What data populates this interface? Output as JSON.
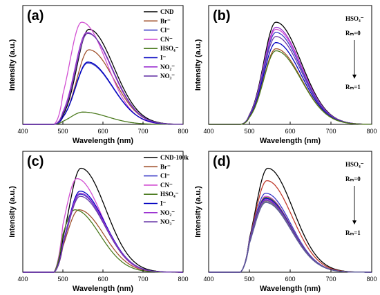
{
  "chart_data": [
    {
      "panel": "(a)",
      "type": "line",
      "xlabel": "Wavelength (nm)",
      "ylabel": "Intensity (a.u.)",
      "xlim": [
        400,
        800
      ],
      "xticks": [
        400,
        500,
        600,
        700,
        800
      ],
      "grid": false,
      "legend": "top-right",
      "series": [
        {
          "name": "CND",
          "color": "#000000",
          "peak": 565,
          "amp": 0.93
        },
        {
          "name": "Br⁻",
          "color": "#a0522d",
          "peak": 565,
          "amp": 0.73
        },
        {
          "name": "Cl⁻",
          "color": "#3c3cc8",
          "peak": 562,
          "amp": 0.6
        },
        {
          "name": "CN⁻",
          "color": "#d24fd2",
          "peak": 547,
          "amp": 1.0
        },
        {
          "name": "HSO₄⁻",
          "color": "#4b7a1e",
          "peak": 550,
          "amp": 0.12
        },
        {
          "name": "I⁻",
          "color": "#0000c0",
          "peak": 562,
          "amp": 0.61
        },
        {
          "name": "NO₂⁻",
          "color": "#9a2fd0",
          "peak": 560,
          "amp": 0.9
        },
        {
          "name": "NO₃⁻",
          "color": "#6a3aa8",
          "peak": 562,
          "amp": 0.89
        }
      ]
    },
    {
      "panel": "(b)",
      "type": "line",
      "xlabel": "Wavelength (nm)",
      "ylabel": "Intensity (a.u.)",
      "xlim": [
        400,
        800
      ],
      "xticks": [
        400,
        500,
        600,
        700,
        800
      ],
      "grid": false,
      "annotation": {
        "anion": "HSO₄⁻",
        "start": "Rₘ=0",
        "end": "Rₘ=1"
      },
      "series": [
        {
          "color": "#000000",
          "peak": 565,
          "amp": 1.0
        },
        {
          "color": "#9a2fd0",
          "peak": 565,
          "amp": 0.95
        },
        {
          "color": "#d24fd2",
          "peak": 565,
          "amp": 0.93
        },
        {
          "color": "#3c3cc8",
          "peak": 565,
          "amp": 0.9
        },
        {
          "color": "#6a3aa8",
          "peak": 565,
          "amp": 0.86
        },
        {
          "color": "#0000c0",
          "peak": 565,
          "amp": 0.8
        },
        {
          "color": "#a0522d",
          "peak": 565,
          "amp": 0.74
        },
        {
          "color": "#4b7a1e",
          "peak": 565,
          "amp": 0.72
        }
      ]
    },
    {
      "panel": "(c)",
      "type": "line",
      "xlabel": "Wavelength (nm)",
      "ylabel": "Intensity (a.u.)",
      "xlim": [
        400,
        800
      ],
      "xticks": [
        400,
        500,
        600,
        700,
        800
      ],
      "grid": false,
      "legend": "top-right",
      "series": [
        {
          "name": "CND-100k",
          "color": "#000000",
          "peak": 545,
          "amp": 1.0
        },
        {
          "name": "Br⁻",
          "color": "#a0522d",
          "peak": 540,
          "amp": 0.6
        },
        {
          "name": "Cl⁻",
          "color": "#3c3cc8",
          "peak": 543,
          "amp": 0.75
        },
        {
          "name": "CN⁻",
          "color": "#d24fd2",
          "peak": 535,
          "amp": 0.9
        },
        {
          "name": "HSO₄⁻",
          "color": "#4b7a1e",
          "peak": 530,
          "amp": 0.6
        },
        {
          "name": "I⁻",
          "color": "#0000c0",
          "peak": 543,
          "amp": 0.78
        },
        {
          "name": "NO₂⁻",
          "color": "#9a2fd0",
          "peak": 543,
          "amp": 0.76
        },
        {
          "name": "NO₃⁻",
          "color": "#6a3aa8",
          "peak": 543,
          "amp": 0.73
        }
      ]
    },
    {
      "panel": "(d)",
      "type": "line",
      "xlabel": "Wavelength (nm)",
      "ylabel": "Intensity (a.u.)",
      "xlim": [
        400,
        800
      ],
      "xticks": [
        400,
        500,
        600,
        700,
        800
      ],
      "grid": false,
      "annotation": {
        "anion": "HSO₄⁻",
        "start": "Rₘ=0",
        "end": "Rₘ=1"
      },
      "series": [
        {
          "color": "#000000",
          "peak": 545,
          "amp": 1.0
        },
        {
          "color": "#c0392b",
          "peak": 543,
          "amp": 0.88
        },
        {
          "color": "#3c3cc8",
          "peak": 540,
          "amp": 0.76
        },
        {
          "color": "#d24fd2",
          "peak": 540,
          "amp": 0.73
        },
        {
          "color": "#4b7a1e",
          "peak": 540,
          "amp": 0.72
        },
        {
          "color": "#0000c0",
          "peak": 540,
          "amp": 0.71
        },
        {
          "color": "#9a2fd0",
          "peak": 540,
          "amp": 0.7
        },
        {
          "color": "#6a3aa8",
          "peak": 540,
          "amp": 0.69
        },
        {
          "color": "#7a7a7a",
          "peak": 540,
          "amp": 0.68
        },
        {
          "color": "#5a5a9a",
          "peak": 540,
          "amp": 0.67
        }
      ]
    }
  ]
}
